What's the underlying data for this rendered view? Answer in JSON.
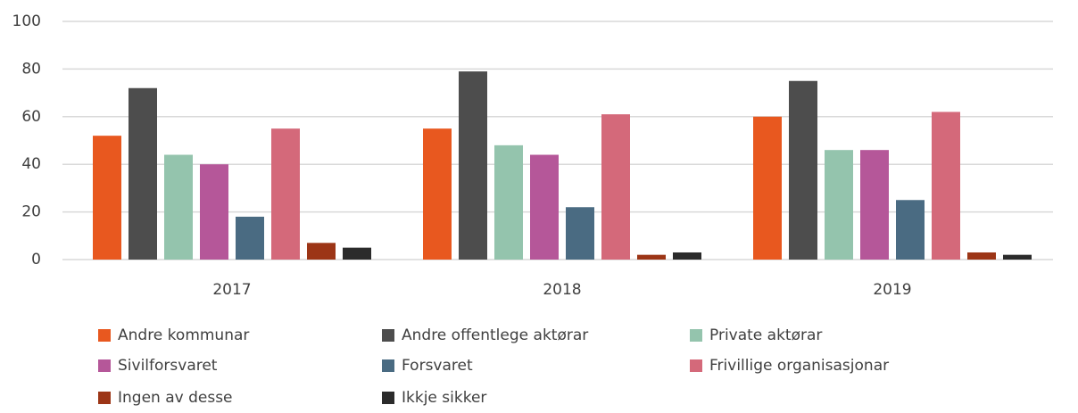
{
  "chart_data": {
    "type": "bar",
    "categories": [
      "2017",
      "2018",
      "2019"
    ],
    "series": [
      {
        "name": "Andre kommunar",
        "color": "#e8581f",
        "values": [
          52,
          55,
          60
        ]
      },
      {
        "name": "Andre offentlege aktørar",
        "color": "#4d4d4d",
        "values": [
          72,
          79,
          75
        ]
      },
      {
        "name": "Private aktørar",
        "color": "#94c4ad",
        "values": [
          44,
          48,
          46
        ]
      },
      {
        "name": "Sivilforsvaret",
        "color": "#b55799",
        "values": [
          40,
          44,
          46
        ]
      },
      {
        "name": "Forsvaret",
        "color": "#4a6b82",
        "values": [
          18,
          22,
          25
        ]
      },
      {
        "name": "Frivillige organisasjonar",
        "color": "#d4697a",
        "values": [
          55,
          61,
          62
        ]
      },
      {
        "name": "Ingen av desse",
        "color": "#9c3516",
        "values": [
          7,
          2,
          3
        ]
      },
      {
        "name": "Ikkje sikker",
        "color": "#2b2b2b",
        "values": [
          5,
          3,
          2
        ]
      }
    ],
    "ylim": [
      0,
      100
    ],
    "yticks": [
      0,
      20,
      40,
      60,
      80,
      100
    ],
    "grid": true
  }
}
